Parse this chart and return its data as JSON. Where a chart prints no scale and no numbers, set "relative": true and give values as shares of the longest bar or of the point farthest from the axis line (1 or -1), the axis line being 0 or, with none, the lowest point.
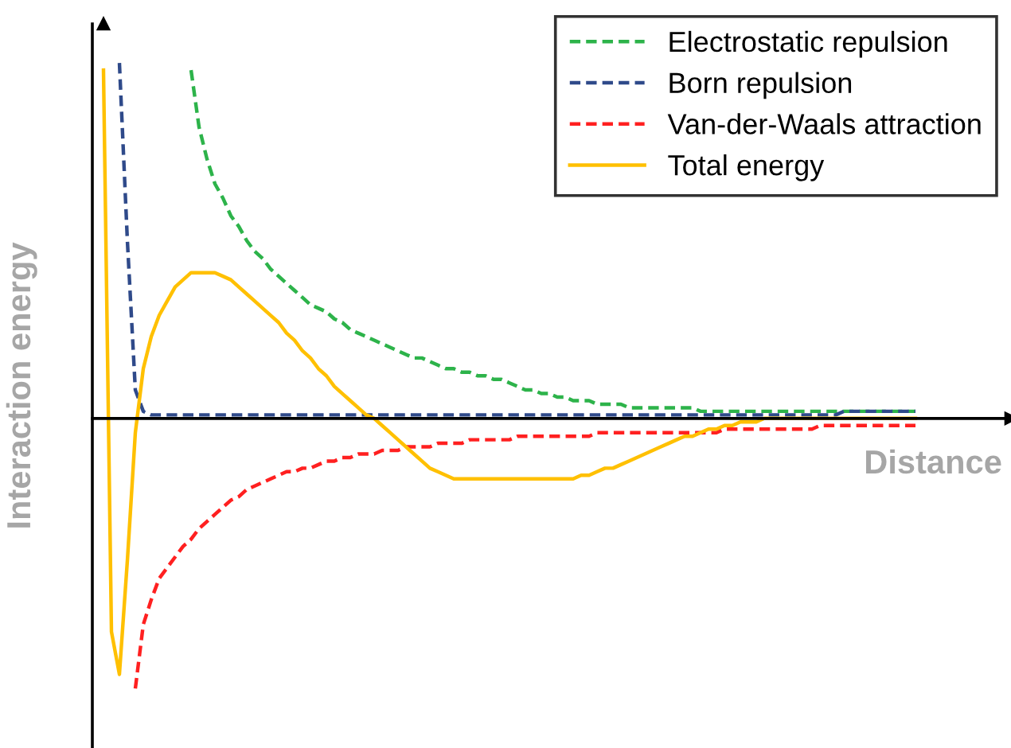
{
  "chart_data": {
    "type": "line",
    "relative": true,
    "xlabel": "Distance",
    "ylabel": "Interaction energy",
    "legend": "top right",
    "grid": false,
    "categories": [
      null,
      null,
      null,
      null,
      null,
      null,
      null,
      null,
      null,
      null,
      null,
      null,
      null,
      null,
      null,
      null,
      null,
      null,
      null,
      null,
      null,
      null,
      null,
      null,
      null,
      null,
      null,
      null,
      null,
      null,
      null,
      null,
      null,
      null,
      null,
      null,
      null,
      null,
      null,
      null,
      null,
      null,
      null,
      null,
      null,
      null,
      null,
      null,
      null,
      null,
      null,
      null,
      null,
      null,
      null,
      null,
      null,
      null,
      null,
      null,
      null,
      null,
      null,
      null,
      null,
      null,
      null,
      null,
      null,
      null,
      null,
      null,
      null,
      null,
      null,
      null,
      null,
      null,
      null,
      null,
      null,
      null,
      null,
      null,
      null,
      null,
      null,
      null,
      null,
      null,
      null,
      null,
      null,
      null,
      null,
      null,
      null,
      null,
      null,
      null,
      null,
      null,
      null
    ],
    "series": [
      {
        "name": "Electrostatic repulsion",
        "color": "#2db34a",
        "line_style": "dashed",
        "values": [
          null,
          null,
          null,
          null,
          null,
          null,
          null,
          null,
          null,
          null,
          null,
          0.98,
          0.82,
          0.73,
          0.66,
          0.62,
          0.57,
          0.54,
          0.5,
          0.47,
          0.45,
          0.42,
          0.4,
          0.38,
          0.36,
          0.34,
          0.32,
          0.31,
          0.3,
          0.28,
          0.27,
          0.25,
          0.24,
          0.23,
          0.22,
          0.21,
          0.2,
          0.19,
          0.18,
          0.17,
          0.17,
          0.16,
          0.15,
          0.14,
          0.14,
          0.13,
          0.13,
          0.12,
          0.12,
          0.11,
          0.11,
          0.1,
          0.09,
          0.08,
          0.08,
          0.07,
          0.07,
          0.06,
          0.06,
          0.05,
          0.05,
          0.05,
          0.04,
          0.04,
          0.04,
          0.04,
          0.03,
          0.03,
          0.03,
          0.03,
          0.03,
          0.03,
          0.03,
          0.03,
          0.03,
          0.02,
          0.02,
          0.02,
          0.02,
          0.02,
          0.02,
          0.02,
          0.02,
          0.02,
          0.02,
          0.02,
          0.02,
          0.02,
          0.02,
          0.02,
          0.02,
          0.02,
          0.02,
          0.02,
          0.02,
          0.02,
          0.02,
          0.02,
          0.02,
          0.02,
          0.02,
          0.02,
          0.02
        ]
      },
      {
        "name": "Born repulsion",
        "color": "#2f4a8a",
        "line_style": "dashed",
        "values": [
          null,
          null,
          1.0,
          0.5,
          0.08,
          0.02,
          0.01,
          0.01,
          0.01,
          0.01,
          0.01,
          0.01,
          0.01,
          0.01,
          0.01,
          0.01,
          0.01,
          0.01,
          0.01,
          0.01,
          0.01,
          0.01,
          0.01,
          0.01,
          0.01,
          0.01,
          0.01,
          0.01,
          0.01,
          0.01,
          0.01,
          0.01,
          0.01,
          0.01,
          0.01,
          0.01,
          0.01,
          0.01,
          0.01,
          0.01,
          0.01,
          0.01,
          0.01,
          0.01,
          0.01,
          0.01,
          0.01,
          0.01,
          0.01,
          0.01,
          0.01,
          0.01,
          0.01,
          0.01,
          0.01,
          0.01,
          0.01,
          0.01,
          0.01,
          0.01,
          0.01,
          0.01,
          0.01,
          0.01,
          0.01,
          0.01,
          0.01,
          0.01,
          0.01,
          0.01,
          0.01,
          0.01,
          0.01,
          0.01,
          0.01,
          0.01,
          0.01,
          0.01,
          0.01,
          0.01,
          0.01,
          0.01,
          0.01,
          0.01,
          0.01,
          0.01,
          0.01,
          0.01,
          0.01,
          0.01,
          0.01,
          0.01,
          0.01,
          0.02,
          0.02,
          0.02,
          0.02,
          0.02,
          0.02,
          0.02,
          0.02,
          0.02,
          0.02
        ]
      },
      {
        "name": "Van-der-Waals attraction",
        "color": "#ff2020",
        "line_style": "dashed",
        "values": [
          null,
          null,
          null,
          null,
          -0.76,
          -0.58,
          -0.51,
          -0.45,
          -0.42,
          -0.39,
          -0.36,
          -0.34,
          -0.31,
          -0.29,
          -0.27,
          -0.25,
          -0.23,
          -0.22,
          -0.2,
          -0.19,
          -0.18,
          -0.17,
          -0.16,
          -0.15,
          -0.15,
          -0.14,
          -0.14,
          -0.13,
          -0.12,
          -0.12,
          -0.11,
          -0.11,
          -0.1,
          -0.1,
          -0.1,
          -0.09,
          -0.09,
          -0.09,
          -0.08,
          -0.08,
          -0.08,
          -0.08,
          -0.07,
          -0.07,
          -0.07,
          -0.07,
          -0.06,
          -0.06,
          -0.06,
          -0.06,
          -0.06,
          -0.06,
          -0.05,
          -0.05,
          -0.05,
          -0.05,
          -0.05,
          -0.05,
          -0.05,
          -0.05,
          -0.05,
          -0.05,
          -0.04,
          -0.04,
          -0.04,
          -0.04,
          -0.04,
          -0.04,
          -0.04,
          -0.04,
          -0.04,
          -0.04,
          -0.04,
          -0.04,
          -0.04,
          -0.04,
          -0.04,
          -0.04,
          -0.03,
          -0.03,
          -0.03,
          -0.03,
          -0.03,
          -0.03,
          -0.03,
          -0.03,
          -0.03,
          -0.03,
          -0.03,
          -0.03,
          -0.02,
          -0.02,
          -0.02,
          -0.02,
          -0.02,
          -0.02,
          -0.02,
          -0.02,
          -0.02,
          -0.02,
          -0.02,
          -0.02,
          -0.02
        ]
      },
      {
        "name": "Total energy",
        "color": "#ffc000",
        "line_style": "solid",
        "values": [
          0.98,
          -0.6,
          -0.72,
          -0.4,
          -0.04,
          0.14,
          0.23,
          0.29,
          0.33,
          0.37,
          0.39,
          0.41,
          0.41,
          0.41,
          0.41,
          0.4,
          0.39,
          0.37,
          0.35,
          0.33,
          0.31,
          0.29,
          0.27,
          0.24,
          0.22,
          0.19,
          0.17,
          0.14,
          0.12,
          0.09,
          0.07,
          0.05,
          0.03,
          0.01,
          0,
          -0.02,
          -0.04,
          -0.06,
          -0.08,
          -0.1,
          -0.12,
          -0.14,
          -0.15,
          -0.16,
          -0.17,
          -0.17,
          -0.17,
          -0.17,
          -0.17,
          -0.17,
          -0.17,
          -0.17,
          -0.17,
          -0.17,
          -0.17,
          -0.17,
          -0.17,
          -0.17,
          -0.17,
          -0.17,
          -0.16,
          -0.16,
          -0.15,
          -0.14,
          -0.14,
          -0.13,
          -0.12,
          -0.11,
          -0.1,
          -0.09,
          -0.08,
          -0.07,
          -0.06,
          -0.05,
          -0.05,
          -0.04,
          -0.03,
          -0.03,
          -0.02,
          -0.02,
          -0.01,
          -0.01,
          -0.01,
          0,
          0,
          0,
          0,
          0,
          0,
          0,
          0,
          0,
          0,
          0,
          0,
          0,
          0,
          0,
          0,
          0,
          0,
          0,
          0
        ]
      }
    ]
  }
}
